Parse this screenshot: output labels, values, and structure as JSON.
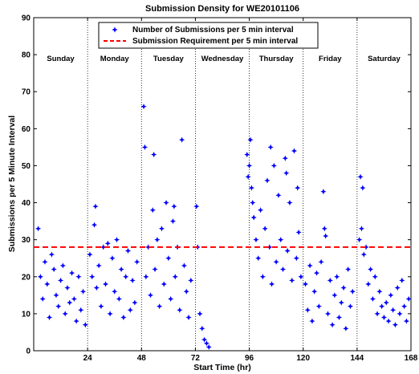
{
  "chart_data": {
    "type": "scatter",
    "title": "Submission Density for WE20101106",
    "xlabel": "Start Time (hr)",
    "ylabel": "Submissions per 5 Minute Interval",
    "xlim": [
      0,
      168
    ],
    "ylim": [
      0,
      90
    ],
    "xticks": [
      24,
      48,
      72,
      96,
      120,
      144,
      168
    ],
    "yticks": [
      0,
      10,
      20,
      30,
      40,
      50,
      60,
      70,
      80,
      90
    ],
    "grid": false,
    "legend_position": "top",
    "day_boundaries": [
      24,
      48,
      72,
      96,
      120,
      144
    ],
    "days": [
      {
        "label": "Sunday",
        "center": 12
      },
      {
        "label": "Monday",
        "center": 36
      },
      {
        "label": "Tuesday",
        "center": 60
      },
      {
        "label": "Wednesday",
        "center": 84
      },
      {
        "label": "Thursday",
        "center": 108
      },
      {
        "label": "Friday",
        "center": 132
      },
      {
        "label": "Saturday",
        "center": 156
      }
    ],
    "series": [
      {
        "name": "Number of Submissions per 5 min interval",
        "marker": "star",
        "color": "#0000ff",
        "points": [
          [
            2,
            33
          ],
          [
            3,
            20
          ],
          [
            4,
            14
          ],
          [
            5,
            24
          ],
          [
            6,
            18
          ],
          [
            7,
            9
          ],
          [
            8,
            26
          ],
          [
            9,
            22
          ],
          [
            10,
            15
          ],
          [
            11,
            12
          ],
          [
            12,
            19
          ],
          [
            13,
            23
          ],
          [
            14,
            10
          ],
          [
            15,
            17
          ],
          [
            16,
            13
          ],
          [
            17,
            21
          ],
          [
            18,
            14
          ],
          [
            19,
            8
          ],
          [
            20,
            20
          ],
          [
            21,
            11
          ],
          [
            22,
            16
          ],
          [
            23,
            7
          ],
          [
            25,
            26
          ],
          [
            26,
            20
          ],
          [
            27,
            34
          ],
          [
            27.5,
            39
          ],
          [
            28,
            17
          ],
          [
            29,
            23
          ],
          [
            30,
            12
          ],
          [
            31,
            28
          ],
          [
            32,
            18
          ],
          [
            33,
            29
          ],
          [
            34,
            10
          ],
          [
            35,
            25
          ],
          [
            36,
            16
          ],
          [
            37,
            30
          ],
          [
            38,
            14
          ],
          [
            39,
            22
          ],
          [
            40,
            9
          ],
          [
            41,
            20
          ],
          [
            42,
            27
          ],
          [
            43,
            11
          ],
          [
            44,
            19
          ],
          [
            45,
            13
          ],
          [
            46,
            24
          ],
          [
            49,
            66
          ],
          [
            49.5,
            55
          ],
          [
            50,
            20
          ],
          [
            51,
            28
          ],
          [
            52,
            15
          ],
          [
            53,
            38
          ],
          [
            53.5,
            53
          ],
          [
            54,
            22
          ],
          [
            55,
            30
          ],
          [
            56,
            12
          ],
          [
            57,
            33
          ],
          [
            58,
            18
          ],
          [
            59,
            40
          ],
          [
            60,
            25
          ],
          [
            61,
            14
          ],
          [
            62,
            35
          ],
          [
            62.5,
            39
          ],
          [
            63,
            20
          ],
          [
            64,
            28
          ],
          [
            65,
            11
          ],
          [
            66,
            57
          ],
          [
            67,
            23
          ],
          [
            68,
            16
          ],
          [
            69,
            9
          ],
          [
            70,
            19
          ],
          [
            72.5,
            39
          ],
          [
            73,
            28
          ],
          [
            74,
            10
          ],
          [
            75,
            6
          ],
          [
            76,
            3
          ],
          [
            77,
            2
          ],
          [
            78,
            1
          ],
          [
            95,
            53
          ],
          [
            95.5,
            47
          ],
          [
            96,
            50
          ],
          [
            96.5,
            57
          ],
          [
            97,
            44
          ],
          [
            97.5,
            40
          ],
          [
            98,
            36
          ],
          [
            99,
            30
          ],
          [
            100,
            25
          ],
          [
            101,
            38
          ],
          [
            102,
            20
          ],
          [
            103,
            33
          ],
          [
            104,
            46
          ],
          [
            105,
            28
          ],
          [
            105.5,
            55
          ],
          [
            106,
            18
          ],
          [
            107,
            50
          ],
          [
            108,
            24
          ],
          [
            109,
            42
          ],
          [
            110,
            30
          ],
          [
            111,
            22
          ],
          [
            112,
            52
          ],
          [
            112.5,
            48
          ],
          [
            113,
            27
          ],
          [
            114,
            40
          ],
          [
            115,
            19
          ],
          [
            116,
            54
          ],
          [
            117,
            25
          ],
          [
            117.5,
            44
          ],
          [
            118,
            32
          ],
          [
            119,
            20
          ],
          [
            121,
            18
          ],
          [
            122,
            11
          ],
          [
            123,
            23
          ],
          [
            124,
            8
          ],
          [
            125,
            16
          ],
          [
            126,
            21
          ],
          [
            127,
            12
          ],
          [
            128,
            24
          ],
          [
            129,
            43
          ],
          [
            129.5,
            33
          ],
          [
            130,
            31
          ],
          [
            131,
            10
          ],
          [
            132,
            19
          ],
          [
            133,
            7
          ],
          [
            134,
            15
          ],
          [
            135,
            20
          ],
          [
            136,
            9
          ],
          [
            137,
            13
          ],
          [
            138,
            17
          ],
          [
            139,
            6
          ],
          [
            140,
            22
          ],
          [
            141,
            12
          ],
          [
            142,
            16
          ],
          [
            145,
            30
          ],
          [
            145.5,
            47
          ],
          [
            146,
            33
          ],
          [
            146.5,
            44
          ],
          [
            147,
            26
          ],
          [
            148,
            28
          ],
          [
            149,
            18
          ],
          [
            150,
            22
          ],
          [
            151,
            14
          ],
          [
            152,
            20
          ],
          [
            153,
            10
          ],
          [
            154,
            16
          ],
          [
            155,
            12
          ],
          [
            156,
            9
          ],
          [
            157,
            13
          ],
          [
            158,
            8
          ],
          [
            159,
            15
          ],
          [
            160,
            11
          ],
          [
            161,
            7
          ],
          [
            162,
            17
          ],
          [
            163,
            10
          ],
          [
            164,
            19
          ],
          [
            165,
            12
          ],
          [
            166,
            8
          ],
          [
            167,
            14
          ]
        ]
      },
      {
        "name": "Submission Requirement per 5 min interval",
        "type": "hline",
        "style": "dashed",
        "color": "#ff0000",
        "y": 28
      }
    ]
  }
}
